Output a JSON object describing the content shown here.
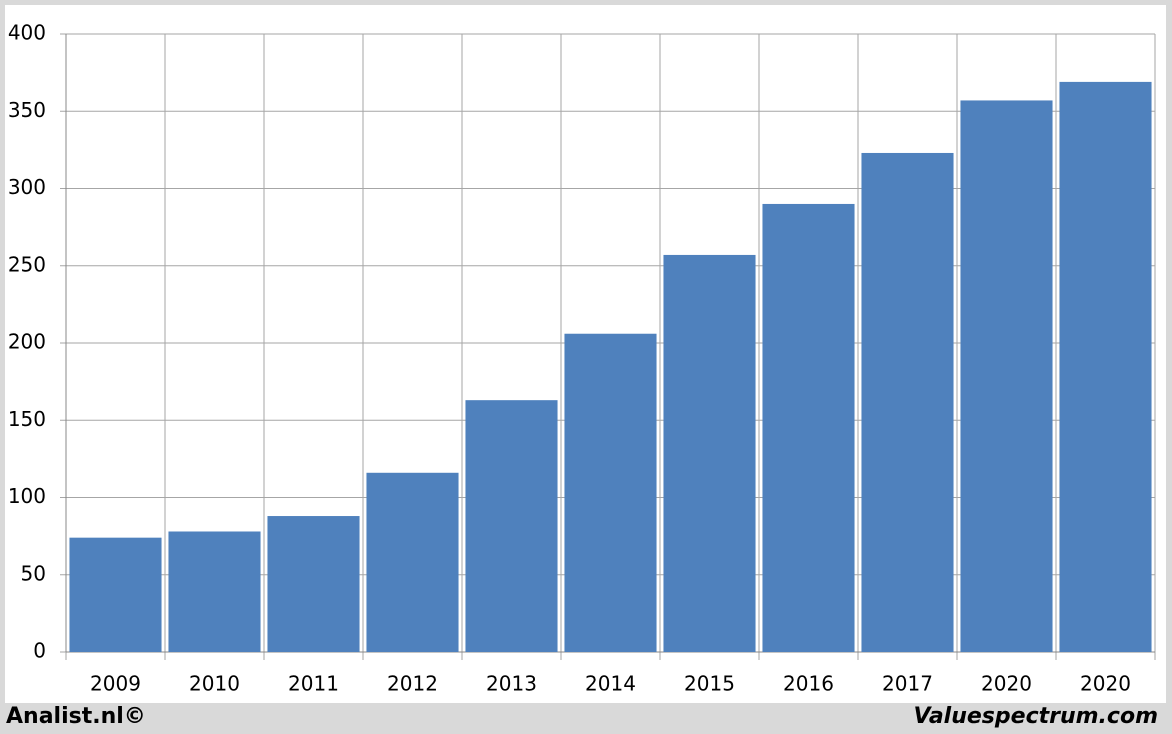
{
  "chart_data": {
    "type": "bar",
    "categories": [
      "2009",
      "2010",
      "2011",
      "2012",
      "2013",
      "2014",
      "2015",
      "2016",
      "2017",
      "2020",
      "2020"
    ],
    "values": [
      74,
      78,
      88,
      116,
      163,
      206,
      257,
      290,
      323,
      357,
      369
    ],
    "color": "#4f81bd",
    "ylim": [
      0,
      400
    ],
    "yticks": [
      0,
      50,
      100,
      150,
      200,
      250,
      300,
      350,
      400
    ],
    "grid": true
  },
  "footer": {
    "left": "Analist.nl©",
    "right": "Valuespectrum.com"
  }
}
